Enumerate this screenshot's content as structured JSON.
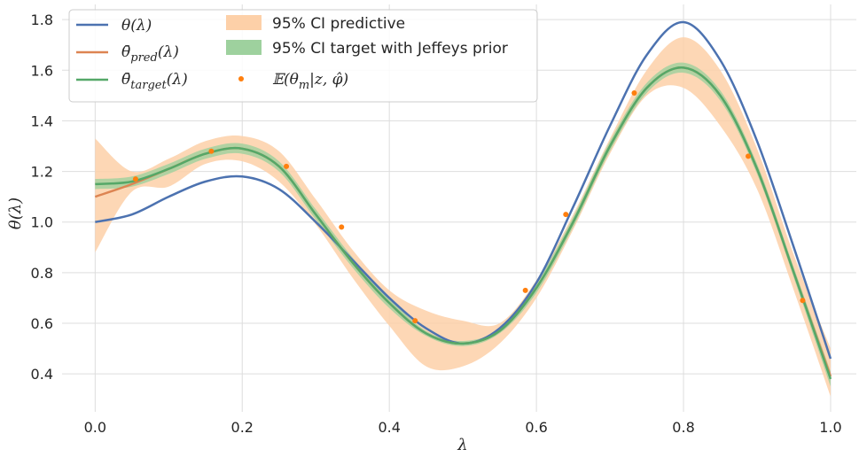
{
  "chart_data": {
    "type": "line",
    "xlabel": "λ",
    "ylabel": "θ(λ)",
    "xlim": [
      -0.045,
      1.035
    ],
    "ylim": [
      0.25,
      1.86
    ],
    "grid": true,
    "legend_placement": "top-left",
    "x_ticks": [
      "0.0",
      "0.2",
      "0.4",
      "0.6",
      "0.8",
      "1.0"
    ],
    "y_ticks": [
      "0.4",
      "0.6",
      "0.8",
      "1.0",
      "1.2",
      "1.4",
      "1.6",
      "1.8"
    ],
    "legend": {
      "theta": {
        "pre": "θ(λ)",
        "sub": "",
        "post": ""
      },
      "theta_pred": {
        "pre": "θ̄",
        "sub": "pred",
        "post": "(λ)"
      },
      "theta_target": {
        "pre": "θ̄",
        "sub": "target",
        "post": "(λ)"
      },
      "ci_predictive": "95% CI predictive",
      "ci_target": "95% CI target with Jeffeys prior",
      "expectation": "𝔼(θ",
      "expectation_sub": "m",
      "expectation_rest": "|z, φ̂)"
    },
    "colors": {
      "theta": "#4c72b0",
      "theta_pred": "#dd8452",
      "theta_target": "#55a868",
      "ci_predictive": "#fdd0a8",
      "ci_target": "#9ed19e",
      "points": "#ff7f0e",
      "grid": "#dddddd"
    },
    "x": [
      0.0,
      0.05,
      0.1,
      0.15,
      0.2,
      0.25,
      0.3,
      0.35,
      0.4,
      0.45,
      0.5,
      0.55,
      0.6,
      0.65,
      0.7,
      0.75,
      0.8,
      0.85,
      0.9,
      0.95,
      1.0
    ],
    "series": [
      {
        "key": "theta",
        "values": [
          1.0,
          1.03,
          1.1,
          1.16,
          1.18,
          1.13,
          1.0,
          0.85,
          0.7,
          0.58,
          0.52,
          0.58,
          0.76,
          1.06,
          1.38,
          1.66,
          1.79,
          1.64,
          1.32,
          0.9,
          0.46
        ]
      },
      {
        "key": "theta_pred",
        "values": [
          1.1,
          1.15,
          1.21,
          1.27,
          1.29,
          1.22,
          1.03,
          0.84,
          0.68,
          0.56,
          0.52,
          0.57,
          0.74,
          1.0,
          1.3,
          1.53,
          1.61,
          1.5,
          1.21,
          0.8,
          0.39
        ]
      },
      {
        "key": "theta_target",
        "values": [
          1.15,
          1.16,
          1.21,
          1.27,
          1.29,
          1.22,
          1.03,
          0.84,
          0.68,
          0.56,
          0.52,
          0.57,
          0.74,
          1.0,
          1.3,
          1.53,
          1.61,
          1.5,
          1.21,
          0.8,
          0.38
        ]
      }
    ],
    "ci_predictive": {
      "lower": [
        0.88,
        1.12,
        1.14,
        1.23,
        1.24,
        1.16,
        0.99,
        0.78,
        0.59,
        0.43,
        0.43,
        0.52,
        0.7,
        0.97,
        1.27,
        1.5,
        1.53,
        1.38,
        1.13,
        0.73,
        0.31
      ],
      "upper": [
        1.33,
        1.2,
        1.25,
        1.32,
        1.34,
        1.28,
        1.09,
        0.89,
        0.73,
        0.65,
        0.61,
        0.6,
        0.77,
        1.03,
        1.33,
        1.6,
        1.73,
        1.6,
        1.29,
        0.87,
        0.5
      ]
    },
    "ci_target": {
      "lower": [
        1.13,
        1.14,
        1.19,
        1.25,
        1.27,
        1.2,
        1.01,
        0.82,
        0.66,
        0.55,
        0.51,
        0.56,
        0.72,
        0.98,
        1.28,
        1.51,
        1.59,
        1.48,
        1.19,
        0.78,
        0.35
      ],
      "upper": [
        1.17,
        1.18,
        1.23,
        1.29,
        1.31,
        1.24,
        1.05,
        0.86,
        0.7,
        0.57,
        0.53,
        0.58,
        0.76,
        1.02,
        1.32,
        1.55,
        1.63,
        1.52,
        1.23,
        0.82,
        0.41
      ]
    },
    "points": {
      "x": [
        0.055,
        0.158,
        0.26,
        0.335,
        0.435,
        0.585,
        0.64,
        0.733,
        0.888,
        0.962
      ],
      "y": [
        1.17,
        1.28,
        1.22,
        0.98,
        0.61,
        0.73,
        1.03,
        1.51,
        1.26,
        0.69
      ]
    }
  }
}
